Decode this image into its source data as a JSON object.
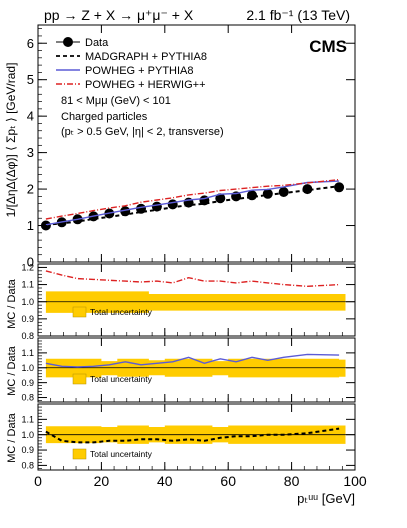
{
  "header": {
    "process_text": "pp → Z + X → μ⁺μ⁻ + X",
    "lumi_text": "2.1 fb⁻¹ (13 TeV)",
    "experiment": "CMS"
  },
  "chart_data": [
    {
      "type": "line",
      "panel": "main",
      "ylabel": "1/[ΔηΔ(Δφ)] ⟨ Σpₜ ⟩ [GeV/rad]",
      "ylim": [
        0,
        6.5
      ],
      "yticks": [
        0,
        1,
        2,
        3,
        4,
        5,
        6
      ],
      "xlim": [
        0,
        100
      ],
      "grid": false,
      "legend_position": "top-left",
      "legend": [
        "Data",
        "MADGRAPH + PYTHIA8",
        "POWHEG + PYTHIA8",
        "POWHEG + HERWIG++"
      ],
      "annotations": [
        "81 < Mμμ (GeV) < 101",
        "Charged particles",
        "(pₜ > 0.5 GeV, |η| < 2, transverse)"
      ],
      "series": [
        {
          "name": "Data",
          "style": "points",
          "color": "#000000",
          "x": [
            2.5,
            7.5,
            12.5,
            17.5,
            22.5,
            27.5,
            32.5,
            37.5,
            42.5,
            47.5,
            52.5,
            57.5,
            62.5,
            67.5,
            72.5,
            77.5,
            85,
            95
          ],
          "y": [
            1.0,
            1.09,
            1.17,
            1.25,
            1.33,
            1.39,
            1.46,
            1.52,
            1.58,
            1.63,
            1.69,
            1.75,
            1.8,
            1.83,
            1.87,
            1.92,
            2.0,
            2.05
          ]
        },
        {
          "name": "MADGRAPH + PYTHIA8",
          "style": "dashed",
          "color": "#000000",
          "x": [
            2.5,
            7.5,
            12.5,
            17.5,
            22.5,
            27.5,
            32.5,
            37.5,
            42.5,
            47.5,
            52.5,
            57.5,
            62.5,
            67.5,
            72.5,
            77.5,
            85,
            95
          ],
          "y": [
            1.02,
            1.06,
            1.11,
            1.18,
            1.24,
            1.3,
            1.37,
            1.43,
            1.5,
            1.56,
            1.6,
            1.67,
            1.73,
            1.78,
            1.84,
            1.89,
            1.97,
            2.08
          ]
        },
        {
          "name": "POWHEG + PYTHIA8",
          "style": "solid",
          "color": "#5b5bd6",
          "x": [
            2.5,
            7.5,
            12.5,
            17.5,
            22.5,
            27.5,
            32.5,
            37.5,
            42.5,
            47.5,
            52.5,
            57.5,
            62.5,
            67.5,
            72.5,
            77.5,
            85,
            95
          ],
          "y": [
            1.02,
            1.1,
            1.17,
            1.26,
            1.34,
            1.42,
            1.5,
            1.56,
            1.63,
            1.7,
            1.74,
            1.86,
            1.88,
            1.97,
            1.99,
            2.06,
            2.18,
            2.22
          ]
        },
        {
          "name": "POWHEG + HERWIG++",
          "style": "dashdot",
          "color": "#dd2222",
          "x": [
            2.5,
            7.5,
            12.5,
            17.5,
            22.5,
            27.5,
            32.5,
            37.5,
            42.5,
            47.5,
            52.5,
            57.5,
            62.5,
            67.5,
            72.5,
            77.5,
            85,
            95
          ],
          "y": [
            1.18,
            1.26,
            1.33,
            1.41,
            1.48,
            1.54,
            1.64,
            1.7,
            1.76,
            1.84,
            1.89,
            1.96,
            2.0,
            2.04,
            2.08,
            2.1,
            2.17,
            2.26
          ]
        }
      ]
    },
    {
      "type": "line",
      "panel": "ratio_herwig",
      "ylabel": "MC / Data",
      "ylim": [
        0.8,
        1.22
      ],
      "yticks": [
        0.8,
        0.9,
        1.0,
        1.1,
        1.2
      ],
      "xlim": [
        0,
        100
      ],
      "band_label": "Total uncertainty",
      "band": {
        "x": [
          2.5,
          32.5,
          35,
          95
        ],
        "low": [
          0.935,
          0.935,
          0.948,
          0.948
        ],
        "high": [
          1.06,
          1.06,
          1.045,
          1.045
        ]
      },
      "series": [
        {
          "name": "POWHEG + HERWIG++",
          "style": "dashdot",
          "color": "#dd2222",
          "x": [
            2.5,
            7.5,
            12.5,
            17.5,
            22.5,
            27.5,
            32.5,
            37.5,
            42.5,
            47.5,
            52.5,
            57.5,
            62.5,
            67.5,
            72.5,
            77.5,
            85,
            95
          ],
          "y": [
            1.18,
            1.155,
            1.135,
            1.13,
            1.125,
            1.12,
            1.115,
            1.12,
            1.11,
            1.14,
            1.12,
            1.12,
            1.11,
            1.12,
            1.11,
            1.1,
            1.09,
            1.1
          ]
        }
      ]
    },
    {
      "type": "line",
      "panel": "ratio_powheg_pythia",
      "ylabel": "MC / Data",
      "ylim": [
        0.77,
        1.2
      ],
      "yticks": [
        0.8,
        0.9,
        1.0,
        1.1
      ],
      "xlim": [
        0,
        100
      ],
      "band_label": "Total uncertainty",
      "band": {
        "x": [
          2.5,
          20,
          25,
          35,
          40,
          55,
          60,
          95
        ],
        "low": [
          0.935,
          0.95,
          0.94,
          0.95,
          0.94,
          0.95,
          0.935,
          0.94
        ],
        "high": [
          1.06,
          1.045,
          1.06,
          1.05,
          1.06,
          1.045,
          1.06,
          1.055
        ]
      },
      "series": [
        {
          "name": "POWHEG + PYTHIA8",
          "style": "solid",
          "color": "#5b5bd6",
          "x": [
            2.5,
            7.5,
            12.5,
            17.5,
            22.5,
            27.5,
            32.5,
            37.5,
            42.5,
            47.5,
            52.5,
            57.5,
            62.5,
            67.5,
            72.5,
            77.5,
            85,
            95
          ],
          "y": [
            1.03,
            1.01,
            1.005,
            1.01,
            1.02,
            1.04,
            1.02,
            1.03,
            1.04,
            1.07,
            1.03,
            1.06,
            1.04,
            1.07,
            1.05,
            1.07,
            1.09,
            1.085
          ]
        }
      ]
    },
    {
      "type": "line",
      "panel": "ratio_madgraph",
      "ylabel": "MC / Data",
      "ylim": [
        0.77,
        1.2
      ],
      "yticks": [
        0.8,
        0.9,
        1.0,
        1.1
      ],
      "xticks": [
        0,
        20,
        40,
        60,
        80,
        100
      ],
      "xlim": [
        0,
        100
      ],
      "xlabel": "pₜᵘᵘ [GeV]",
      "band_label": "Total uncertainty",
      "band": {
        "x": [
          2.5,
          20,
          25,
          35,
          40,
          55,
          60,
          95
        ],
        "low": [
          0.945,
          0.95,
          0.94,
          0.95,
          0.94,
          0.95,
          0.94,
          0.94
        ],
        "high": [
          1.055,
          1.05,
          1.06,
          1.05,
          1.06,
          1.05,
          1.06,
          1.06
        ]
      },
      "series": [
        {
          "name": "MADGRAPH + PYTHIA8",
          "style": "dashed",
          "color": "#000000",
          "x": [
            2.5,
            7.5,
            12.5,
            17.5,
            22.5,
            27.5,
            32.5,
            37.5,
            42.5,
            47.5,
            52.5,
            57.5,
            62.5,
            67.5,
            72.5,
            77.5,
            85,
            95
          ],
          "y": [
            1.02,
            0.96,
            0.95,
            0.95,
            0.96,
            0.96,
            0.97,
            0.97,
            0.96,
            0.97,
            0.96,
            0.98,
            0.99,
            0.99,
            1.0,
            1.0,
            1.01,
            1.04
          ]
        }
      ]
    }
  ],
  "colors": {
    "band": "#ffcc00",
    "data": "#000000",
    "madgraph": "#000000",
    "powheg_pythia": "#5b5bd6",
    "powheg_herwig": "#dd2222"
  }
}
